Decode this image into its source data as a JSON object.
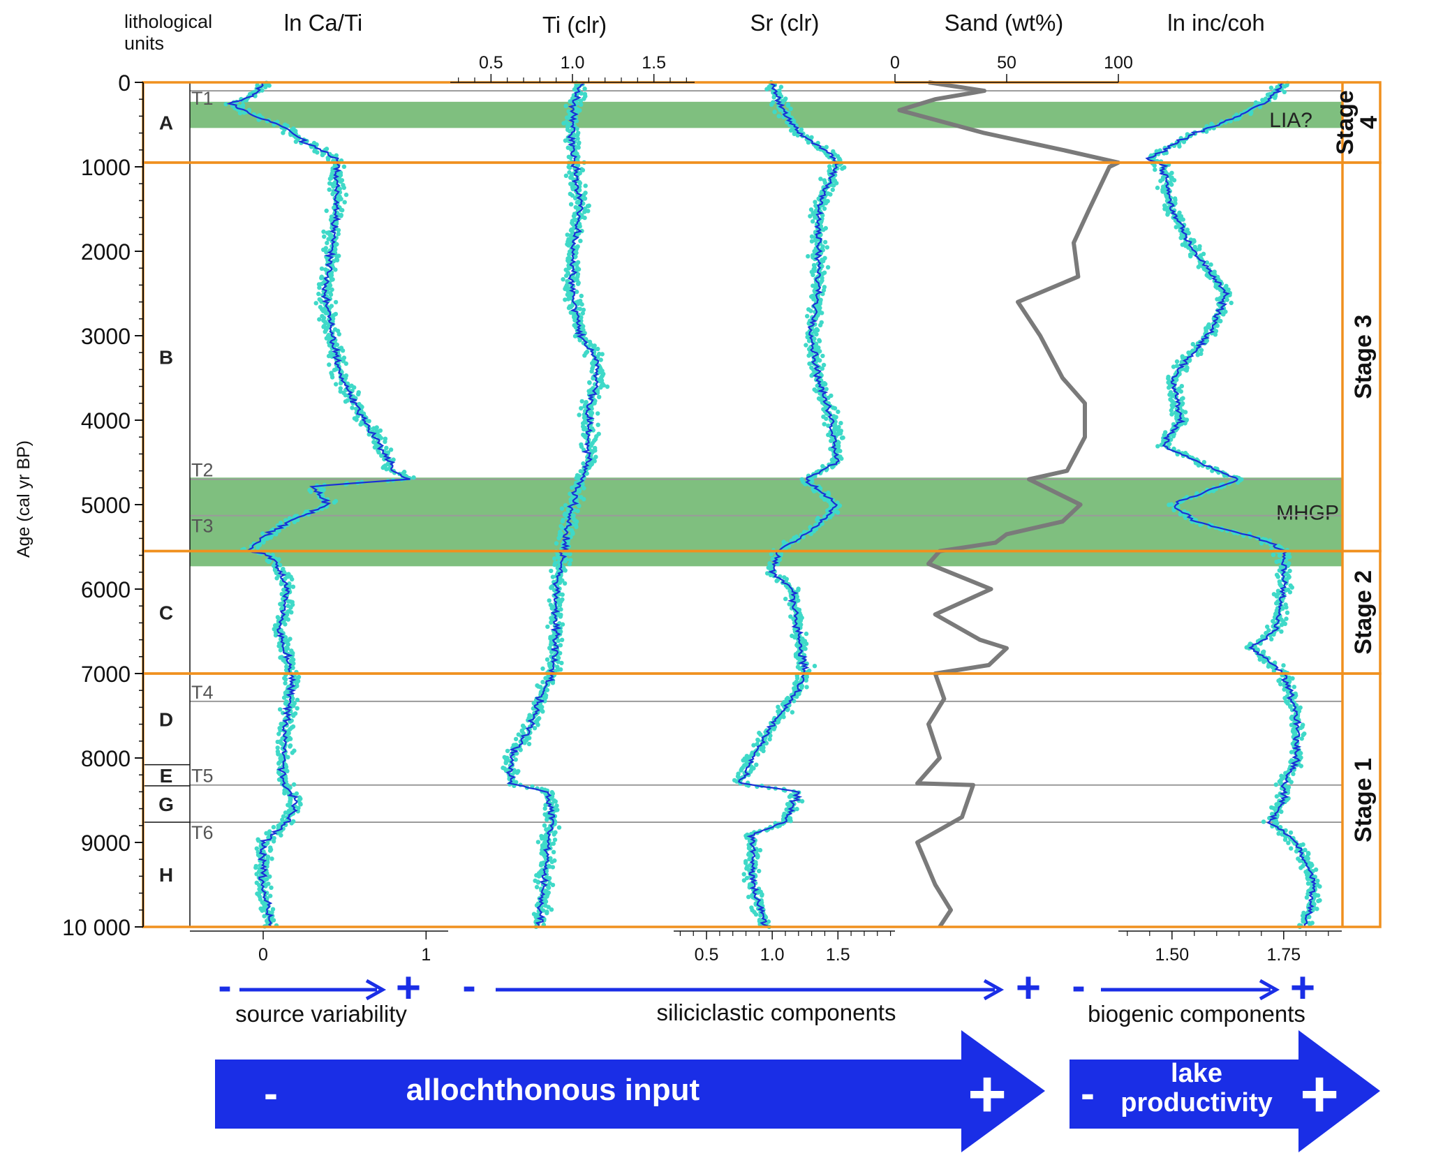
{
  "header": {
    "lith_label_line1": "lithological",
    "lith_label_line2": "units",
    "panel_titles": [
      "ln Ca/Ti",
      "Ti (clr)",
      "Sr (clr)",
      "Sand (wt%)",
      "ln inc/coh"
    ]
  },
  "age_axis": {
    "label": "Age (cal yr BP)",
    "min": 0,
    "max": 10000,
    "ticks": [
      "0",
      "1000",
      "2000",
      "3000",
      "4000",
      "5000",
      "6000",
      "7000",
      "8000",
      "9000",
      "10 000"
    ]
  },
  "lith_units": [
    {
      "label": "A",
      "top": 0,
      "bottom": 950
    },
    {
      "label": "B",
      "top": 950,
      "bottom": 5550
    },
    {
      "label": "C",
      "top": 5550,
      "bottom": 7000
    },
    {
      "label": "D",
      "top": 7000,
      "bottom": 8080
    },
    {
      "label": "E",
      "top": 8080,
      "bottom": 8330
    },
    {
      "label": "G",
      "top": 8330,
      "bottom": 8760
    },
    {
      "label": "H",
      "top": 8760,
      "bottom": 10000
    }
  ],
  "tephras": [
    {
      "label": "T1",
      "age": 100
    },
    {
      "label": "T2",
      "age": 4700
    },
    {
      "label": "T3",
      "age": 5130
    },
    {
      "label": "T4",
      "age": 7330
    },
    {
      "label": "T5",
      "age": 8320
    },
    {
      "label": "T6",
      "age": 8760
    }
  ],
  "highlight_bands": [
    {
      "label": "LIA?",
      "from": 230,
      "to": 540
    },
    {
      "label": "MHGP",
      "from": 4680,
      "to": 5730
    }
  ],
  "stages": [
    {
      "label": "Stage",
      "label2": "4",
      "from": 0,
      "to": 950
    },
    {
      "label": "Stage 3",
      "label2": "",
      "from": 950,
      "to": 5550
    },
    {
      "label": "Stage 2",
      "label2": "",
      "from": 5550,
      "to": 7000
    },
    {
      "label": "Stage 1",
      "label2": "",
      "from": 7000,
      "to": 10000
    }
  ],
  "bottom_axes": {
    "ca_ti_ticks": [
      "0",
      "1"
    ],
    "sr_ticks": [
      "0.5",
      "1.0",
      "1.5"
    ],
    "inc_ticks": [
      "1.50",
      "1.75"
    ]
  },
  "top_axes": {
    "ti_ticks": [
      "0.5",
      "1.0",
      "1.5"
    ],
    "sand_ticks": [
      "0",
      "50",
      "100"
    ]
  },
  "legend": {
    "minus": "-",
    "plus": "+",
    "source_variability": "source variability",
    "siliciclastic_components": "siliciclastic components",
    "biogenic_components": "biogenic components",
    "allochthonous_input": "allochthonous input",
    "lake_line1": "lake",
    "lake_line2": "productivity"
  },
  "colors": {
    "orange": "#f0901e",
    "band_green": "#3a9c3a",
    "scatter": "#3fd9c8",
    "mean_line": "#1a2fd6",
    "sand_line": "#7a7a7a",
    "arrow_blue": "#1a2ee6"
  },
  "chart_data": {
    "type": "scatter",
    "age_range": [
      0,
      10000
    ],
    "series": [
      {
        "name": "ln Ca/Ti",
        "xlim": [
          -0.45,
          1.05
        ],
        "profile": [
          [
            0,
            0.0
          ],
          [
            150,
            -0.05
          ],
          [
            250,
            -0.2
          ],
          [
            400,
            -0.05
          ],
          [
            500,
            0.1
          ],
          [
            700,
            0.25
          ],
          [
            900,
            0.45
          ],
          [
            1000,
            0.45
          ],
          [
            1500,
            0.45
          ],
          [
            2000,
            0.42
          ],
          [
            2500,
            0.38
          ],
          [
            3000,
            0.42
          ],
          [
            3500,
            0.48
          ],
          [
            4000,
            0.62
          ],
          [
            4300,
            0.72
          ],
          [
            4600,
            0.8
          ],
          [
            4700,
            0.9
          ],
          [
            4780,
            0.3
          ],
          [
            5000,
            0.4
          ],
          [
            5200,
            0.15
          ],
          [
            5400,
            0.0
          ],
          [
            5550,
            -0.1
          ],
          [
            5600,
            0.05
          ],
          [
            6000,
            0.15
          ],
          [
            6500,
            0.1
          ],
          [
            7000,
            0.18
          ],
          [
            7500,
            0.15
          ],
          [
            8000,
            0.12
          ],
          [
            8300,
            0.12
          ],
          [
            8500,
            0.2
          ],
          [
            8760,
            0.15
          ],
          [
            9000,
            0.0
          ],
          [
            9500,
            0.0
          ],
          [
            10000,
            0.05
          ]
        ]
      },
      {
        "name": "Ti (clr)",
        "xlim": [
          0.25,
          1.75
        ],
        "profile": [
          [
            0,
            1.05
          ],
          [
            300,
            1.0
          ],
          [
            700,
            1.0
          ],
          [
            1000,
            1.02
          ],
          [
            1500,
            1.05
          ],
          [
            2000,
            1.0
          ],
          [
            2500,
            1.0
          ],
          [
            3000,
            1.05
          ],
          [
            3300,
            1.15
          ],
          [
            3600,
            1.15
          ],
          [
            3800,
            1.1
          ],
          [
            4500,
            1.1
          ],
          [
            4700,
            1.05
          ],
          [
            5000,
            1.0
          ],
          [
            5500,
            0.95
          ],
          [
            6000,
            0.9
          ],
          [
            6500,
            0.9
          ],
          [
            7000,
            0.88
          ],
          [
            7300,
            0.8
          ],
          [
            7600,
            0.75
          ],
          [
            8000,
            0.62
          ],
          [
            8300,
            0.62
          ],
          [
            8400,
            0.85
          ],
          [
            8760,
            0.88
          ],
          [
            9000,
            0.85
          ],
          [
            9500,
            0.82
          ],
          [
            10000,
            0.8
          ]
        ]
      },
      {
        "name": "Sr (clr)",
        "xlim": [
          0.25,
          1.95
        ],
        "profile": [
          [
            0,
            1.0
          ],
          [
            200,
            1.05
          ],
          [
            400,
            1.1
          ],
          [
            600,
            1.2
          ],
          [
            800,
            1.4
          ],
          [
            950,
            1.5
          ],
          [
            1500,
            1.35
          ],
          [
            2000,
            1.35
          ],
          [
            2500,
            1.35
          ],
          [
            3000,
            1.3
          ],
          [
            3500,
            1.35
          ],
          [
            4000,
            1.45
          ],
          [
            4500,
            1.5
          ],
          [
            4700,
            1.25
          ],
          [
            5000,
            1.5
          ],
          [
            5300,
            1.3
          ],
          [
            5550,
            1.05
          ],
          [
            5800,
            1.0
          ],
          [
            6000,
            1.15
          ],
          [
            6500,
            1.2
          ],
          [
            7000,
            1.25
          ],
          [
            7300,
            1.15
          ],
          [
            7600,
            1.0
          ],
          [
            8000,
            0.85
          ],
          [
            8300,
            0.75
          ],
          [
            8400,
            1.2
          ],
          [
            8760,
            1.1
          ],
          [
            8900,
            0.85
          ],
          [
            9500,
            0.85
          ],
          [
            10000,
            0.95
          ]
        ]
      },
      {
        "name": "Sand (wt%)",
        "xlim": [
          0,
          100
        ],
        "profile": [
          [
            0,
            15
          ],
          [
            100,
            40
          ],
          [
            200,
            18
          ],
          [
            330,
            2
          ],
          [
            600,
            40
          ],
          [
            800,
            75
          ],
          [
            950,
            100
          ],
          [
            1000,
            96
          ],
          [
            1500,
            87
          ],
          [
            1900,
            80
          ],
          [
            2300,
            82
          ],
          [
            2600,
            55
          ],
          [
            3000,
            65
          ],
          [
            3500,
            75
          ],
          [
            3800,
            85
          ],
          [
            4200,
            85
          ],
          [
            4600,
            77
          ],
          [
            4700,
            60
          ],
          [
            5000,
            83
          ],
          [
            5200,
            75
          ],
          [
            5350,
            50
          ],
          [
            5450,
            45
          ],
          [
            5550,
            20
          ],
          [
            5700,
            15
          ],
          [
            6000,
            43
          ],
          [
            6300,
            18
          ],
          [
            6600,
            38
          ],
          [
            6700,
            50
          ],
          [
            6900,
            42
          ],
          [
            7000,
            18
          ],
          [
            7300,
            22
          ],
          [
            7600,
            15
          ],
          [
            8000,
            20
          ],
          [
            8300,
            10
          ],
          [
            8320,
            35
          ],
          [
            8700,
            30
          ],
          [
            9000,
            10
          ],
          [
            9500,
            18
          ],
          [
            9800,
            25
          ],
          [
            10000,
            20
          ]
        ]
      },
      {
        "name": "ln inc/coh",
        "xlim": [
          1.38,
          1.88
        ],
        "profile": [
          [
            0,
            1.75
          ],
          [
            200,
            1.72
          ],
          [
            400,
            1.65
          ],
          [
            600,
            1.55
          ],
          [
            900,
            1.45
          ],
          [
            1000,
            1.48
          ],
          [
            1500,
            1.5
          ],
          [
            2000,
            1.55
          ],
          [
            2500,
            1.62
          ],
          [
            2800,
            1.6
          ],
          [
            3000,
            1.58
          ],
          [
            3500,
            1.5
          ],
          [
            4000,
            1.52
          ],
          [
            4300,
            1.48
          ],
          [
            4600,
            1.6
          ],
          [
            4700,
            1.65
          ],
          [
            5000,
            1.5
          ],
          [
            5200,
            1.55
          ],
          [
            5400,
            1.7
          ],
          [
            5550,
            1.75
          ],
          [
            6000,
            1.75
          ],
          [
            6500,
            1.73
          ],
          [
            6700,
            1.68
          ],
          [
            7000,
            1.75
          ],
          [
            7500,
            1.78
          ],
          [
            8000,
            1.78
          ],
          [
            8300,
            1.75
          ],
          [
            8500,
            1.75
          ],
          [
            8760,
            1.72
          ],
          [
            9000,
            1.78
          ],
          [
            9500,
            1.82
          ],
          [
            10000,
            1.8
          ]
        ]
      }
    ]
  }
}
